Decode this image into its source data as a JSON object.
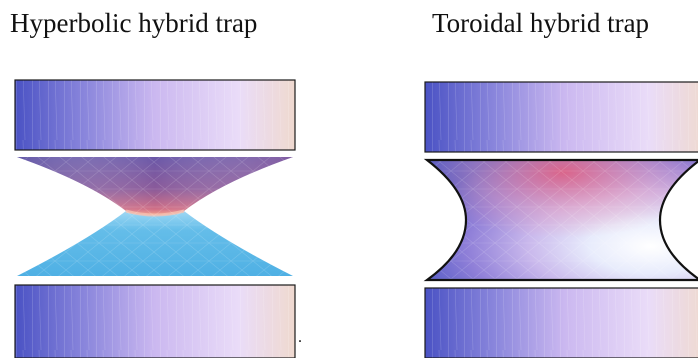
{
  "panels": [
    {
      "id": "left",
      "title": "Hyperbolic hybrid trap",
      "electrodes": [
        "top-endcap",
        "hyperbolic-ring",
        "bottom-endcap"
      ]
    },
    {
      "id": "right",
      "title": "Toroidal hybrid trap",
      "electrodes": [
        "top-endcap",
        "toroidal-ring",
        "bottom-endcap"
      ]
    }
  ],
  "trailing_mark": ".",
  "colors": {
    "endcap_dark": "#4a52c4",
    "endcap_light": "#efd9cf",
    "endcap_mid": "#d8c6f2",
    "hyperbolic_top": "#6a4d9c",
    "hyperbolic_neck": "#e77a84",
    "hyperbolic_bottom": "#5ab6e6",
    "toroid_left": "#5b63c9",
    "toroid_center": "#f2b0c4",
    "toroid_right": "#ffffff"
  }
}
